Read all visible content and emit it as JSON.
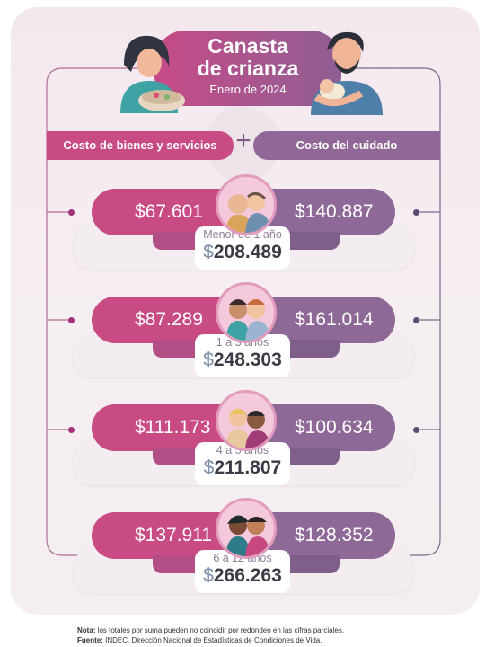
{
  "header": {
    "title_line1": "Canasta",
    "title_line2": "de crianza",
    "period": "Enero de 2024"
  },
  "columns": {
    "left": "Costo de bienes y servicios",
    "plus": "+",
    "right": "Costo del cuidado"
  },
  "rows": [
    {
      "goods": "$67.601",
      "care": "$140.887",
      "age": "Menor de 1 año",
      "currency": "$",
      "total": "208.489"
    },
    {
      "goods": "$87.289",
      "care": "$161.014",
      "age": "1 a 3 años",
      "currency": "$",
      "total": "248.303"
    },
    {
      "goods": "$111.173",
      "care": "$100.634",
      "age": "4 a 5 años",
      "currency": "$",
      "total": "211.807"
    },
    {
      "goods": "$137.911",
      "care": "$128.352",
      "age": "6 a 12 años",
      "currency": "$",
      "total": "266.263"
    }
  ],
  "footer": {
    "note_label": "Nota:",
    "note_text": "los totales por suma pueden no coincidir por redondeo en las cifras parciales.",
    "source_label": "Fuente:",
    "source_text": "INDEC, Dirección Nacional de Estadísticas de Condiciones de Vida."
  },
  "colors": {
    "goods": "#c84b84",
    "care": "#8e6896",
    "background": "#f3e8ee"
  },
  "icons": [
    "woman-cooking-illustration",
    "man-holding-baby-illustration",
    "babies-avatar",
    "toddlers-avatar",
    "children-avatar",
    "older-children-avatar"
  ]
}
